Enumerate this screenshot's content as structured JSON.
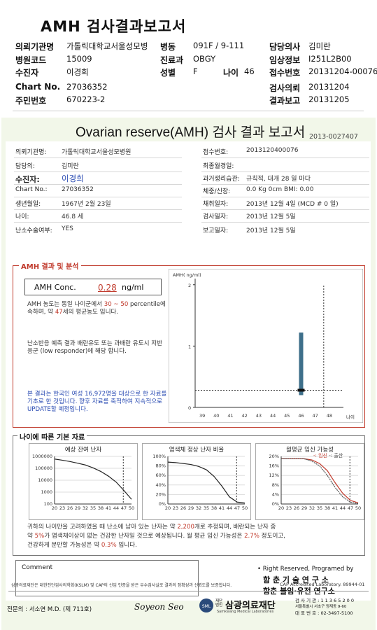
{
  "header": {
    "title": "AMH 검사결과보고서",
    "rows": [
      {
        "k1": "의뢰기관명",
        "v1": "가톨릭대학교서울성모병",
        "k2": "병동",
        "v2": "091F / 9-111",
        "k3": "담당의사",
        "v3": "김미란"
      },
      {
        "k1": "병원코드",
        "v1": "15009",
        "k2": "진료과",
        "v2": "OBGY",
        "k3": "임상정보",
        "v3": "I251L2B00"
      },
      {
        "k1": "수진자",
        "v1": "이경희",
        "k2": "성별",
        "v2": "F",
        "k2b": "나이",
        "v2b": "46",
        "k3": "접수번호",
        "v3": "20131204-00076"
      },
      {
        "k1": "Chart No.",
        "v1": "27036352",
        "k3": "검사의뢰",
        "v3": "20131204"
      },
      {
        "k1": "주민번호",
        "v1": "670223-2",
        "k3": "결과보고",
        "v3": "20131205"
      }
    ]
  },
  "report": {
    "title": "Ovarian reserve(AMH) 검사 결과 보고서",
    "number": "2013-0027407",
    "left": [
      {
        "label": "의뢰기관명:",
        "value": "가톨릭대학교서울성모병원"
      },
      {
        "label": "담당의:",
        "value": "김미란"
      },
      {
        "label": "수진자:",
        "value": "이경희"
      },
      {
        "label": "Chart No.:",
        "value": "27036352"
      },
      {
        "label": "생년월일:",
        "value": "1967년 2월 23일"
      },
      {
        "label": "나이:",
        "value": "46.8 세"
      },
      {
        "label": "난소수술여부:",
        "value": "YES"
      }
    ],
    "right": [
      {
        "label": "접수번호:",
        "value": "2013120400076"
      },
      {
        "label": "최종월경일:",
        "value": ""
      },
      {
        "label": "과거생리습관:",
        "value": "규칙적, 대개  28 일 마다"
      },
      {
        "label": "체중/신장:",
        "value": "0.0 Kg      0cm    BMI:   0.00"
      },
      {
        "label": "채취일자:",
        "value": "2013년 12월 4일   (MCD # 0 일)"
      },
      {
        "label": "검사일자:",
        "value": "2013년 12월 5일"
      },
      {
        "label": "보고일자:",
        "value": "2013년 12월 5일"
      }
    ],
    "amh": {
      "legend": "AMH 결과 및 분석",
      "conc_label": "AMH Conc.",
      "conc_value": "0.28",
      "conc_unit": "ng/ml",
      "t1a": "AMH 농도는 동일 나이군에서",
      "t1b": "30 ~ 50",
      "t1c": "percentile에 속하며, 약",
      "t1d": "47",
      "t1e": "세의 평균농도 입니다.",
      "t2": "난소반응 예측 결과 배란유도 또는 과배란 유도시 저반응군 (low responder)에 해당 합니다.",
      "t3": "본 결과는 한국인 여성 16,972명을 대상으로 한 자료를 기초로 한 것입니다. 향후 자료를 축적하여 지속적으로 UPDATE할 예정입니다."
    },
    "age": {
      "legend": "나이에 따른 기본 자료",
      "c1": "예상 잔여 난자",
      "c2": "염색체 정상 난자 비율",
      "c3": "월평균 임신 가능성",
      "c3_leg1": "-: 임신",
      "c3_leg2": "-: 출산",
      "s1a": "귀하의 나이만을 고려하였을 때 난소에 남아 있는 난자는 약",
      "s1b": "2,200",
      "s1c": "개로 추정되며, 배란되는 난자 중",
      "s2a": "약",
      "s2b": "5%",
      "s2c": "가 염색체이상이 없는 건강한 난자일 것으로 예상됩니다. 월 평균 임신 가능성은",
      "s2d": "2.7%",
      "s2e": "정도이고,",
      "s3a": "건강하게 분만할 가능성은 약",
      "s3b": "0.3%",
      "s3c": "입니다."
    },
    "comment_label": "Comment",
    "rights": "• Right Reserved, Programed by",
    "org1": "함 춘  기 술  연 구 소",
    "org2": "함춘 불임·유전 연구소",
    "footnote": "삼광의료재단은 대한진단검사의학회(KSLM) 및 CAP의 신임 인증을 받은 우수검사실로 결과의 정확성과 신뢰도를 보증합니다.",
    "cap": "CAP  Accredited  Laboratory.  89944-01",
    "specialist": "전문의 : 서소연 M.D. (제 711호)",
    "signature": "Soyeon Seo",
    "foundation": "삼광의료재단",
    "foundation_sub": "재단법인",
    "foundation_en": "Samkwang Medical Laboratories",
    "contact1": "검 사 기 관 : 1 1 3 6 5 2 0 0",
    "contact2": "서울특별시 서초구 양재동 9-60",
    "contact3": "대 표 번 호 : 02-3497-5100"
  },
  "chart_data": [
    {
      "type": "scatter",
      "title": "",
      "ylabel": "AMH( ng/ml)",
      "xlabel": "나이",
      "x_ticks": [
        39,
        40,
        41,
        42,
        43,
        44,
        45,
        46,
        47,
        48
      ],
      "y_ticks": [
        0,
        1,
        2
      ],
      "ylim": [
        0,
        2.1
      ],
      "patient_age": 46,
      "patient_value": 0.28,
      "range_bar": [
        0.2,
        1.22
      ],
      "marker_line_age": 47.6
    },
    {
      "type": "line",
      "title": "예상 잔여 난자",
      "y_ticks": [
        "1000000",
        "100000",
        "10000",
        "1000",
        "100"
      ],
      "x": [
        20,
        23,
        26,
        29,
        32,
        35,
        38,
        41,
        44,
        47,
        50
      ],
      "values": [
        600000,
        480000,
        370000,
        270000,
        190000,
        110000,
        55000,
        22000,
        7000,
        1400,
        250
      ]
    },
    {
      "type": "line",
      "title": "염색체 정상 난자 비율",
      "y_ticks": [
        "100%",
        "80%",
        "60%",
        "40%",
        "20%",
        "0%"
      ],
      "x": [
        20,
        23,
        26,
        29,
        32,
        35,
        38,
        41,
        44,
        47,
        50
      ],
      "values": [
        88,
        87,
        85,
        83,
        79,
        72,
        58,
        38,
        15,
        4,
        2
      ]
    },
    {
      "type": "line",
      "title": "월평균 임신 가능성",
      "y_ticks": [
        "20%",
        "16%",
        "12%",
        "8%",
        "4%",
        "0%"
      ],
      "x": [
        20,
        23,
        26,
        29,
        32,
        35,
        38,
        41,
        44,
        47,
        50
      ],
      "series": [
        {
          "name": "-: 임신",
          "values": [
            19,
            19,
            19,
            19,
            18.5,
            17,
            14,
            9,
            4.5,
            1.5,
            0.5
          ]
        },
        {
          "name": "-: 출산",
          "values": [
            19,
            19,
            19,
            19,
            18,
            16,
            12,
            7,
            3,
            0.8,
            0.2
          ]
        }
      ]
    }
  ]
}
